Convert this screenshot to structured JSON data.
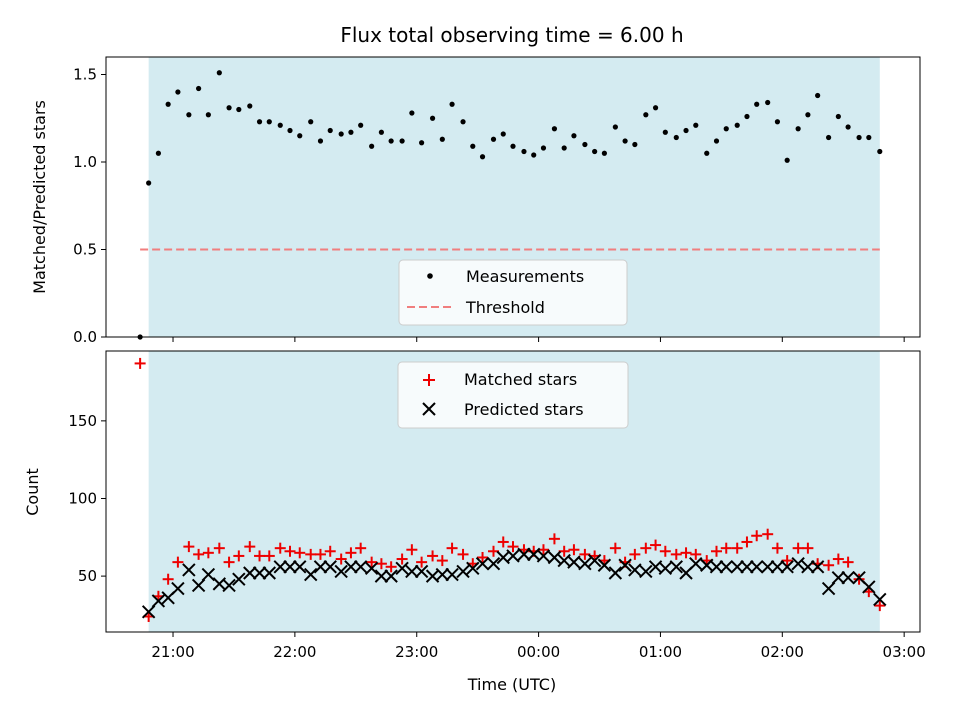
{
  "chart_data": [
    {
      "type": "scatter",
      "title": "Flux total observing time = 6.00 h",
      "xlabel": "",
      "ylabel": "Matched/Predicted stars",
      "ylim": [
        0,
        1.6
      ],
      "xlim": [
        -3.55,
        3.13
      ],
      "x_unit": "hours relative to 00:00 UTC",
      "yticks": [
        "0.0",
        "0.5",
        "1.0",
        "1.5"
      ],
      "shaded_span": [
        -3.2,
        2.8
      ],
      "shade_color": "#d4ebf1",
      "threshold": {
        "label": "Threshold",
        "value": 0.5,
        "x_start": -3.27,
        "x_end": 2.8,
        "color": "#f07e7e"
      },
      "legend": {
        "placement": "lower center",
        "entries": [
          "Measurements",
          "Threshold"
        ]
      },
      "series": [
        {
          "name": "Measurements",
          "color": "#000000",
          "x": [
            -3.27,
            -3.2,
            -3.12,
            -3.04,
            -2.96,
            -2.87,
            -2.79,
            -2.71,
            -2.62,
            -2.54,
            -2.46,
            -2.37,
            -2.29,
            -2.21,
            -2.12,
            -2.04,
            -1.96,
            -1.87,
            -1.79,
            -1.71,
            -1.62,
            -1.54,
            -1.46,
            -1.37,
            -1.29,
            -1.21,
            -1.12,
            -1.04,
            -0.96,
            -0.87,
            -0.79,
            -0.71,
            -0.62,
            -0.54,
            -0.46,
            -0.37,
            -0.29,
            -0.21,
            -0.12,
            -0.04,
            0.04,
            0.13,
            0.21,
            0.29,
            0.38,
            0.46,
            0.54,
            0.63,
            0.71,
            0.79,
            0.88,
            0.96,
            1.04,
            1.13,
            1.21,
            1.29,
            1.38,
            1.46,
            1.54,
            1.63,
            1.71,
            1.79,
            1.88,
            1.96,
            2.04,
            2.13,
            2.21,
            2.29,
            2.38,
            2.46,
            2.54,
            2.63,
            2.71,
            2.8
          ],
          "y": [
            0.0,
            0.88,
            1.05,
            1.33,
            1.4,
            1.27,
            1.42,
            1.27,
            1.51,
            1.31,
            1.3,
            1.32,
            1.23,
            1.23,
            1.21,
            1.18,
            1.15,
            1.23,
            1.12,
            1.18,
            1.16,
            1.17,
            1.21,
            1.09,
            1.17,
            1.12,
            1.12,
            1.28,
            1.11,
            1.25,
            1.13,
            1.33,
            1.23,
            1.09,
            1.03,
            1.13,
            1.16,
            1.09,
            1.06,
            1.04,
            1.08,
            1.19,
            1.08,
            1.15,
            1.1,
            1.06,
            1.05,
            1.2,
            1.12,
            1.1,
            1.27,
            1.31,
            1.17,
            1.14,
            1.18,
            1.21,
            1.05,
            1.12,
            1.19,
            1.21,
            1.26,
            1.33,
            1.34,
            1.23,
            1.01,
            1.19,
            1.27,
            1.38,
            1.14,
            1.26,
            1.2,
            1.14,
            1.14,
            1.06
          ]
        }
      ]
    },
    {
      "type": "scatter",
      "title": "",
      "xlabel": "Time (UTC)",
      "ylabel": "Count",
      "ylim": [
        14,
        195
      ],
      "xlim": [
        -3.55,
        3.13
      ],
      "x_unit": "hours relative to 00:00 UTC",
      "yticks": [
        "50",
        "100",
        "150"
      ],
      "xticks": [
        "21:00",
        "22:00",
        "23:00",
        "00:00",
        "01:00",
        "02:00",
        "03:00"
      ],
      "shaded_span": [
        -3.2,
        2.8
      ],
      "shade_color": "#d4ebf1",
      "legend": {
        "placement": "upper center",
        "entries": [
          "Matched stars",
          "Predicted stars"
        ]
      },
      "series": [
        {
          "name": "Matched stars",
          "marker": "+",
          "color": "#ee0000",
          "x": [
            -3.27,
            -3.2,
            -3.12,
            -3.04,
            -2.96,
            -2.87,
            -2.79,
            -2.71,
            -2.62,
            -2.54,
            -2.46,
            -2.37,
            -2.29,
            -2.21,
            -2.12,
            -2.04,
            -1.96,
            -1.87,
            -1.79,
            -1.71,
            -1.62,
            -1.54,
            -1.46,
            -1.37,
            -1.29,
            -1.21,
            -1.12,
            -1.04,
            -0.96,
            -0.87,
            -0.79,
            -0.71,
            -0.62,
            -0.54,
            -0.46,
            -0.37,
            -0.29,
            -0.21,
            -0.12,
            -0.04,
            0.04,
            0.13,
            0.21,
            0.29,
            0.38,
            0.46,
            0.54,
            0.63,
            0.71,
            0.79,
            0.88,
            0.96,
            1.04,
            1.13,
            1.21,
            1.29,
            1.38,
            1.46,
            1.54,
            1.63,
            1.71,
            1.79,
            1.88,
            1.96,
            2.04,
            2.13,
            2.21,
            2.29,
            2.38,
            2.46,
            2.54,
            2.63,
            2.71,
            2.8
          ],
          "y": [
            187,
            24,
            37,
            48,
            59,
            69,
            64,
            65,
            68,
            59,
            63,
            69,
            63,
            63,
            68,
            66,
            65,
            64,
            64,
            66,
            61,
            65,
            68,
            59,
            58,
            56,
            61,
            67,
            59,
            63,
            60,
            68,
            64,
            58,
            62,
            66,
            72,
            69,
            67,
            66,
            67,
            74,
            66,
            67,
            64,
            63,
            60,
            68,
            59,
            64,
            68,
            70,
            66,
            64,
            65,
            64,
            60,
            66,
            68,
            68,
            72,
            76,
            77,
            68,
            60,
            68,
            68,
            58,
            57,
            61,
            59,
            48,
            40,
            31
          ]
        },
        {
          "name": "Predicted stars",
          "marker": "x",
          "color": "#000000",
          "x": [
            -3.2,
            -3.12,
            -3.04,
            -2.96,
            -2.87,
            -2.79,
            -2.71,
            -2.62,
            -2.54,
            -2.46,
            -2.37,
            -2.29,
            -2.21,
            -2.12,
            -2.04,
            -1.96,
            -1.87,
            -1.79,
            -1.71,
            -1.62,
            -1.54,
            -1.46,
            -1.37,
            -1.29,
            -1.21,
            -1.12,
            -1.04,
            -0.96,
            -0.87,
            -0.79,
            -0.71,
            -0.62,
            -0.54,
            -0.46,
            -0.37,
            -0.29,
            -0.21,
            -0.12,
            -0.04,
            0.04,
            0.13,
            0.21,
            0.29,
            0.38,
            0.46,
            0.54,
            0.63,
            0.71,
            0.79,
            0.88,
            0.96,
            1.04,
            1.13,
            1.21,
            1.29,
            1.38,
            1.46,
            1.54,
            1.63,
            1.71,
            1.79,
            1.88,
            1.96,
            2.04,
            2.13,
            2.21,
            2.29,
            2.38,
            2.46,
            2.54,
            2.63,
            2.71,
            2.8
          ],
          "y": [
            27,
            34,
            36,
            42,
            54,
            44,
            51,
            45,
            44,
            48,
            52,
            52,
            52,
            56,
            56,
            56,
            51,
            56,
            56,
            53,
            56,
            56,
            55,
            50,
            50,
            55,
            53,
            53,
            50,
            51,
            51,
            53,
            55,
            58,
            58,
            62,
            63,
            64,
            64,
            63,
            62,
            60,
            59,
            58,
            60,
            57,
            52,
            57,
            54,
            53,
            56,
            55,
            56,
            52,
            58,
            57,
            56,
            56,
            56,
            56,
            56,
            56,
            56,
            56,
            58,
            56,
            56,
            42,
            49,
            49,
            49,
            43,
            35
          ]
        }
      ]
    }
  ]
}
